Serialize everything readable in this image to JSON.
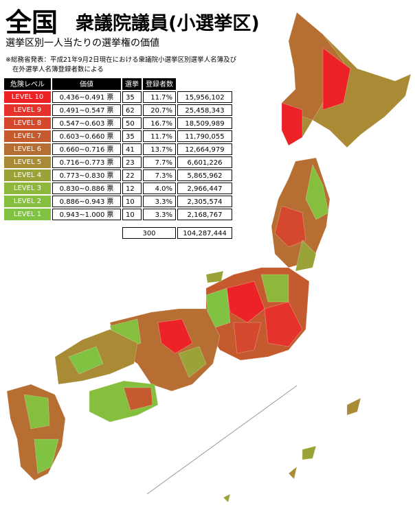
{
  "header": {
    "title": "全国",
    "subtitle_main": "衆議院議員(小選挙区)",
    "subtitle": "選挙区別一人当たりの選挙権の価値",
    "note": [
      "※総務省発表：平成21年9月2日現在における衆議院小選挙区別選挙人名簿及び",
      "在外選挙人名簿登録者数による"
    ]
  },
  "table": {
    "columns": [
      "危険レベル",
      "価値",
      "選挙区数",
      "登録者数"
    ],
    "unit": "票",
    "rows": [
      {
        "level": "LEVEL 10",
        "range": "0.436~0.491",
        "count": "35",
        "share": "11.7%",
        "registered": "15,956,102",
        "color": "#ec2227"
      },
      {
        "level": "LEVEL 9",
        "range": "0.491~0.547",
        "count": "62",
        "share": "20.7%",
        "registered": "25,458,343",
        "color": "#e5322b"
      },
      {
        "level": "LEVEL 8",
        "range": "0.547~0.603",
        "count": "50",
        "share": "16.7%",
        "registered": "18,509,989",
        "color": "#d4482d"
      },
      {
        "level": "LEVEL 7",
        "range": "0.603~0.660",
        "count": "35",
        "share": "11.7%",
        "registered": "11,790,055",
        "color": "#c65a2f"
      },
      {
        "level": "LEVEL 6",
        "range": "0.660~0.716",
        "count": "41",
        "share": "13.7%",
        "registered": "12,664,979",
        "color": "#b76e32"
      },
      {
        "level": "LEVEL 5",
        "range": "0.716~0.773",
        "count": "23",
        "share": "7.7%",
        "registered": "6,601,226",
        "color": "#a98a35"
      },
      {
        "level": "LEVEL 4",
        "range": "0.773~0.830",
        "count": "22",
        "share": "7.3%",
        "registered": "5,865,962",
        "color": "#9aa338"
      },
      {
        "level": "LEVEL 3",
        "range": "0.830~0.886",
        "count": "12",
        "share": "4.0%",
        "registered": "2,966,447",
        "color": "#8db83b"
      },
      {
        "level": "LEVEL 2",
        "range": "0.886~0.943",
        "count": "10",
        "share": "3.3%",
        "registered": "2,305,574",
        "color": "#86be3d"
      },
      {
        "level": "LEVEL 1",
        "range": "0.943~1.000",
        "count": "10",
        "share": "3.3%",
        "registered": "2,168,767",
        "color": "#80c342"
      }
    ],
    "total": {
      "count": "300",
      "registered": "104,287,444"
    }
  }
}
